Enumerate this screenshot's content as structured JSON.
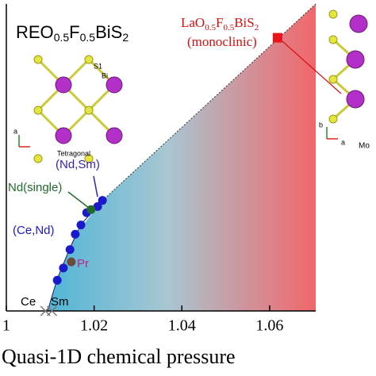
{
  "chart_data": {
    "type": "scatter",
    "title": [
      "REO",
      "0.5",
      "F",
      "0.5",
      "BiS",
      "2"
    ],
    "xlabel": "Quasi-1D chemical pressure",
    "xlim": [
      1,
      1.0705
    ],
    "ylim": [
      0,
      1
    ],
    "xticks": [
      1,
      1.02,
      1.04,
      1.06
    ],
    "series": [
      {
        "color": "#1a1acc",
        "marker": "circle",
        "x": [
          1.0116,
          1.013,
          1.0145,
          1.0157,
          1.017,
          1.0183,
          1.0208,
          1.0219
        ],
        "values": [
          0.1,
          0.14,
          0.2,
          0.25,
          0.28,
          0.32,
          0.34,
          0.36
        ]
      },
      {
        "color": "#1f6b2a",
        "marker": "circle",
        "x": [
          1.0193
        ],
        "values": [
          0.33
        ]
      },
      {
        "color": "#6b4a3a",
        "marker": "circle",
        "x": [
          1.0148
        ],
        "values": [
          0.16
        ]
      },
      {
        "color": "#e8141c",
        "marker": "square",
        "x": [
          1.0618
        ],
        "values": [
          0.89
        ]
      },
      {
        "color": "#777777",
        "marker": "cross",
        "x": [
          1.0089,
          1.0104
        ],
        "values": [
          0,
          0
        ]
      }
    ],
    "annotations": {
      "nd_sm": "(Nd,Sm)",
      "nd_single": "Nd(single)",
      "ce_nd": "(Ce,Nd)",
      "pr": "Pr",
      "ce": "Ce",
      "sm": "Sm",
      "la": [
        "LaO",
        "0.5",
        "F",
        "0.5",
        "BiS",
        "2"
      ],
      "monoclinic": "(monoclinic)",
      "tetragonal": "Tetragonal",
      "s1": "S1",
      "bi": "Bi",
      "axis_a": "a",
      "axis_a2": "a",
      "axis_b": "b",
      "mo": "Mo"
    }
  }
}
